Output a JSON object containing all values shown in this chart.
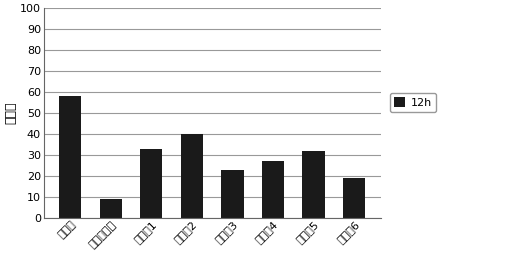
{
  "categories": [
    "试验组",
    "载体对照组",
    "对照组1",
    "对照组2",
    "对照组3",
    "对照组4",
    "对照组5",
    "对照组6"
  ],
  "values": [
    58,
    9,
    33,
    40,
    23,
    27,
    32,
    19
  ],
  "bar_color": "#1a1a1a",
  "ylabel": "百分比",
  "ylim": [
    0,
    100
  ],
  "yticks": [
    0,
    10,
    20,
    30,
    40,
    50,
    60,
    70,
    80,
    90,
    100
  ],
  "legend_label": "12h",
  "background_color": "#ffffff",
  "grid_color": "#999999",
  "bar_width": 0.55,
  "tick_fontsize": 8,
  "label_fontsize": 8,
  "ylabel_fontsize": 9
}
